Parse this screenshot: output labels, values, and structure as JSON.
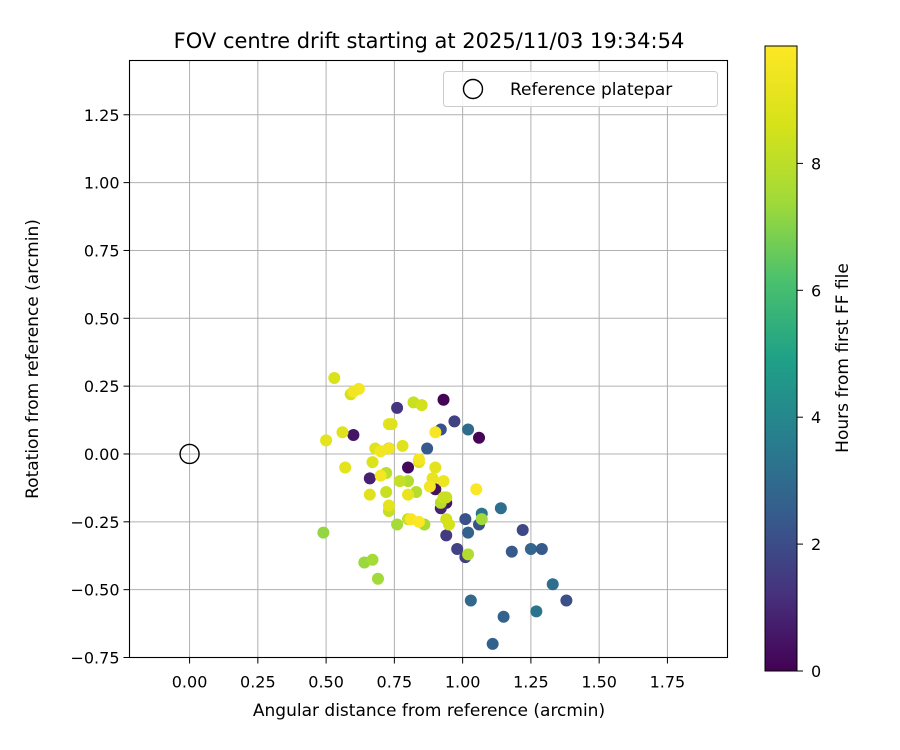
{
  "chart_data": {
    "type": "scatter",
    "title": "FOV centre drift starting at 2025/11/03 19:34:54",
    "xlabel": "Angular distance from reference (arcmin)",
    "ylabel": "Rotation from reference (arcmin)",
    "xlim": [
      -0.22,
      1.97
    ],
    "ylim": [
      -0.75,
      1.45
    ],
    "xticks": [
      0.0,
      0.25,
      0.5,
      0.75,
      1.0,
      1.25,
      1.5,
      1.75
    ],
    "xtick_labels": [
      "0.00",
      "0.25",
      "0.50",
      "0.75",
      "1.00",
      "1.25",
      "1.50",
      "1.75"
    ],
    "yticks": [
      -0.75,
      -0.5,
      -0.25,
      0.0,
      0.25,
      0.5,
      0.75,
      1.0,
      1.25
    ],
    "ytick_labels": [
      "−0.75",
      "−0.50",
      "−0.25",
      "0.00",
      "0.25",
      "0.50",
      "0.75",
      "1.00",
      "1.25"
    ],
    "grid": true,
    "legend": {
      "location": "upper right",
      "entries": [
        "Reference platepar"
      ]
    },
    "reference_point": {
      "x": 0.0,
      "y": 0.0,
      "label": "Reference platepar"
    },
    "colorbar": {
      "label": "Hours from first FF file",
      "colormap": "viridis",
      "range": [
        0,
        9.85
      ],
      "ticks": [
        0,
        2,
        4,
        6,
        8
      ],
      "tick_labels": [
        "0",
        "2",
        "4",
        "6",
        "8"
      ]
    },
    "points": [
      {
        "x": 0.93,
        "y": 0.2,
        "c": 0.1
      },
      {
        "x": 1.06,
        "y": 0.06,
        "c": 0.1
      },
      {
        "x": 0.6,
        "y": 0.07,
        "c": 0.5
      },
      {
        "x": 0.8,
        "y": -0.05,
        "c": 0.2
      },
      {
        "x": 0.73,
        "y": 0.02,
        "c": 0.3
      },
      {
        "x": 0.66,
        "y": -0.09,
        "c": 0.8
      },
      {
        "x": 0.94,
        "y": -0.18,
        "c": 0.5
      },
      {
        "x": 0.9,
        "y": -0.13,
        "c": 0.4
      },
      {
        "x": 0.92,
        "y": -0.2,
        "c": 0.9
      },
      {
        "x": 0.76,
        "y": 0.17,
        "c": 1.3
      },
      {
        "x": 0.97,
        "y": 0.12,
        "c": 1.7
      },
      {
        "x": 0.87,
        "y": 0.02,
        "c": 2.4
      },
      {
        "x": 0.92,
        "y": 0.09,
        "c": 2.2
      },
      {
        "x": 1.02,
        "y": 0.09,
        "c": 3.0
      },
      {
        "x": 0.94,
        "y": -0.3,
        "c": 1.5
      },
      {
        "x": 0.98,
        "y": -0.35,
        "c": 1.7
      },
      {
        "x": 1.01,
        "y": -0.38,
        "c": 1.6
      },
      {
        "x": 1.01,
        "y": -0.24,
        "c": 2.2
      },
      {
        "x": 1.02,
        "y": -0.29,
        "c": 2.7
      },
      {
        "x": 1.06,
        "y": -0.26,
        "c": 2.2
      },
      {
        "x": 1.07,
        "y": -0.22,
        "c": 3.3
      },
      {
        "x": 1.14,
        "y": -0.2,
        "c": 3.1
      },
      {
        "x": 1.18,
        "y": -0.36,
        "c": 2.4
      },
      {
        "x": 1.22,
        "y": -0.28,
        "c": 1.9
      },
      {
        "x": 1.25,
        "y": -0.35,
        "c": 2.8
      },
      {
        "x": 1.29,
        "y": -0.35,
        "c": 2.4
      },
      {
        "x": 1.33,
        "y": -0.48,
        "c": 3.1
      },
      {
        "x": 1.38,
        "y": -0.54,
        "c": 2.1
      },
      {
        "x": 1.27,
        "y": -0.58,
        "c": 3.3
      },
      {
        "x": 1.15,
        "y": -0.6,
        "c": 2.7
      },
      {
        "x": 1.03,
        "y": -0.54,
        "c": 2.9
      },
      {
        "x": 1.11,
        "y": -0.7,
        "c": 2.6
      },
      {
        "x": 0.49,
        "y": -0.29,
        "c": 7.2
      },
      {
        "x": 0.64,
        "y": -0.4,
        "c": 7.3
      },
      {
        "x": 0.67,
        "y": -0.39,
        "c": 7.5
      },
      {
        "x": 0.69,
        "y": -0.46,
        "c": 7.4
      },
      {
        "x": 0.76,
        "y": -0.26,
        "c": 7.5
      },
      {
        "x": 0.86,
        "y": -0.26,
        "c": 7.6
      },
      {
        "x": 1.07,
        "y": -0.24,
        "c": 7.4
      },
      {
        "x": 1.02,
        "y": -0.37,
        "c": 7.8
      },
      {
        "x": 0.92,
        "y": -0.18,
        "c": 7.9
      },
      {
        "x": 0.83,
        "y": -0.14,
        "c": 7.9
      },
      {
        "x": 0.8,
        "y": -0.1,
        "c": 7.8
      },
      {
        "x": 0.77,
        "y": -0.1,
        "c": 8.2
      },
      {
        "x": 0.72,
        "y": -0.07,
        "c": 8.0
      },
      {
        "x": 0.73,
        "y": -0.21,
        "c": 8.2
      },
      {
        "x": 0.72,
        "y": -0.14,
        "c": 8.3
      },
      {
        "x": 0.8,
        "y": -0.24,
        "c": 8.2
      },
      {
        "x": 0.94,
        "y": -0.24,
        "c": 8.5
      },
      {
        "x": 0.95,
        "y": -0.26,
        "c": 8.6
      },
      {
        "x": 0.93,
        "y": -0.16,
        "c": 8.4
      },
      {
        "x": 0.94,
        "y": -0.16,
        "c": 8.3
      },
      {
        "x": 0.82,
        "y": 0.19,
        "c": 8.3
      },
      {
        "x": 0.85,
        "y": 0.18,
        "c": 8.5
      },
      {
        "x": 0.53,
        "y": 0.28,
        "c": 8.7
      },
      {
        "x": 0.59,
        "y": 0.22,
        "c": 8.6
      },
      {
        "x": 0.56,
        "y": 0.08,
        "c": 8.9
      },
      {
        "x": 0.5,
        "y": 0.05,
        "c": 9.0
      },
      {
        "x": 0.57,
        "y": -0.05,
        "c": 9.0
      },
      {
        "x": 0.66,
        "y": -0.15,
        "c": 8.9
      },
      {
        "x": 0.67,
        "y": -0.03,
        "c": 8.8
      },
      {
        "x": 0.68,
        "y": 0.02,
        "c": 8.9
      },
      {
        "x": 0.73,
        "y": 0.11,
        "c": 9.0
      },
      {
        "x": 0.74,
        "y": 0.11,
        "c": 8.9
      },
      {
        "x": 0.78,
        "y": 0.03,
        "c": 8.9
      },
      {
        "x": 0.84,
        "y": -0.03,
        "c": 8.9
      },
      {
        "x": 0.9,
        "y": -0.05,
        "c": 9.0
      },
      {
        "x": 0.89,
        "y": -0.09,
        "c": 9.2
      },
      {
        "x": 0.93,
        "y": -0.1,
        "c": 9.3
      },
      {
        "x": 0.8,
        "y": -0.15,
        "c": 9.2
      },
      {
        "x": 0.73,
        "y": -0.19,
        "c": 9.0
      },
      {
        "x": 0.62,
        "y": 0.24,
        "c": 9.6
      },
      {
        "x": 0.6,
        "y": 0.23,
        "c": 9.5
      },
      {
        "x": 0.7,
        "y": 0.01,
        "c": 9.5
      },
      {
        "x": 0.73,
        "y": 0.02,
        "c": 9.5
      },
      {
        "x": 0.7,
        "y": -0.08,
        "c": 9.6
      },
      {
        "x": 0.84,
        "y": -0.02,
        "c": 9.6
      },
      {
        "x": 0.9,
        "y": 0.08,
        "c": 9.7
      },
      {
        "x": 0.88,
        "y": -0.12,
        "c": 9.6
      },
      {
        "x": 0.81,
        "y": -0.24,
        "c": 9.7
      },
      {
        "x": 0.84,
        "y": -0.25,
        "c": 9.8
      },
      {
        "x": 1.05,
        "y": -0.13,
        "c": 9.8
      }
    ]
  }
}
